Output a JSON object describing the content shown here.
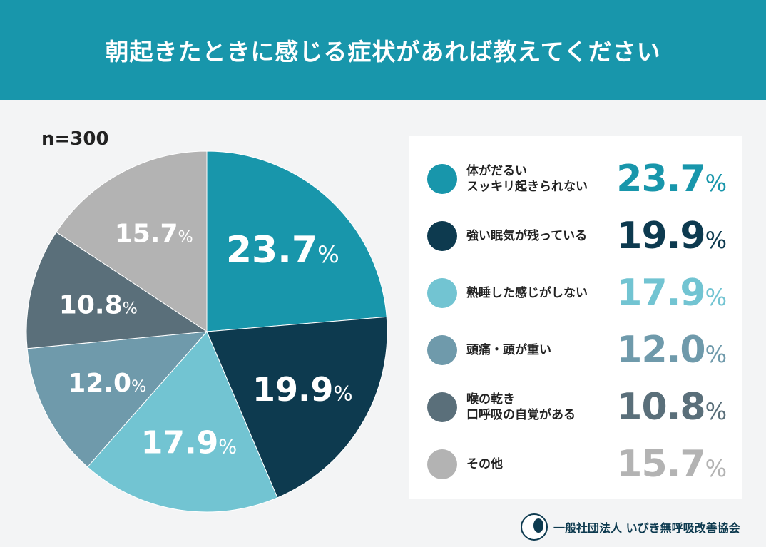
{
  "title": "朝起きたときに感じる症状があれば教えてください",
  "sample": "n=300",
  "chart_data": {
    "type": "pie",
    "categories": [
      "体がだるい スッキリ起きられない",
      "強い眠気が残っている",
      "熟睡した感じがしない",
      "頭痛・頭が重い",
      "喉の乾き 口呼吸の自覚がある",
      "その他"
    ],
    "values": [
      23.7,
      19.9,
      17.9,
      12.0,
      10.8,
      15.7
    ],
    "labels": [
      "23.7",
      "19.9",
      "17.9",
      "12.0",
      "10.8",
      "15.7"
    ],
    "colors": [
      "#1896ab",
      "#0d3a4f",
      "#72c4d2",
      "#6f9aab",
      "#5a6f7a",
      "#b3b3b3"
    ],
    "start": "top",
    "direction": "clockwise"
  },
  "legend": [
    {
      "label": "体がだるい\nスッキリ起きられない",
      "value": "23.7"
    },
    {
      "label": "強い眠気が残っている",
      "value": "19.9"
    },
    {
      "label": "熟睡した感じがしない",
      "value": "17.9"
    },
    {
      "label": "頭痛・頭が重い",
      "value": "12.0"
    },
    {
      "label": "喉の乾き\n口呼吸の自覚がある",
      "value": "10.8"
    },
    {
      "label": "その他",
      "value": "15.7"
    }
  ],
  "unit": "%",
  "organization": "一般社団法人 いびき無呼吸改善協会"
}
